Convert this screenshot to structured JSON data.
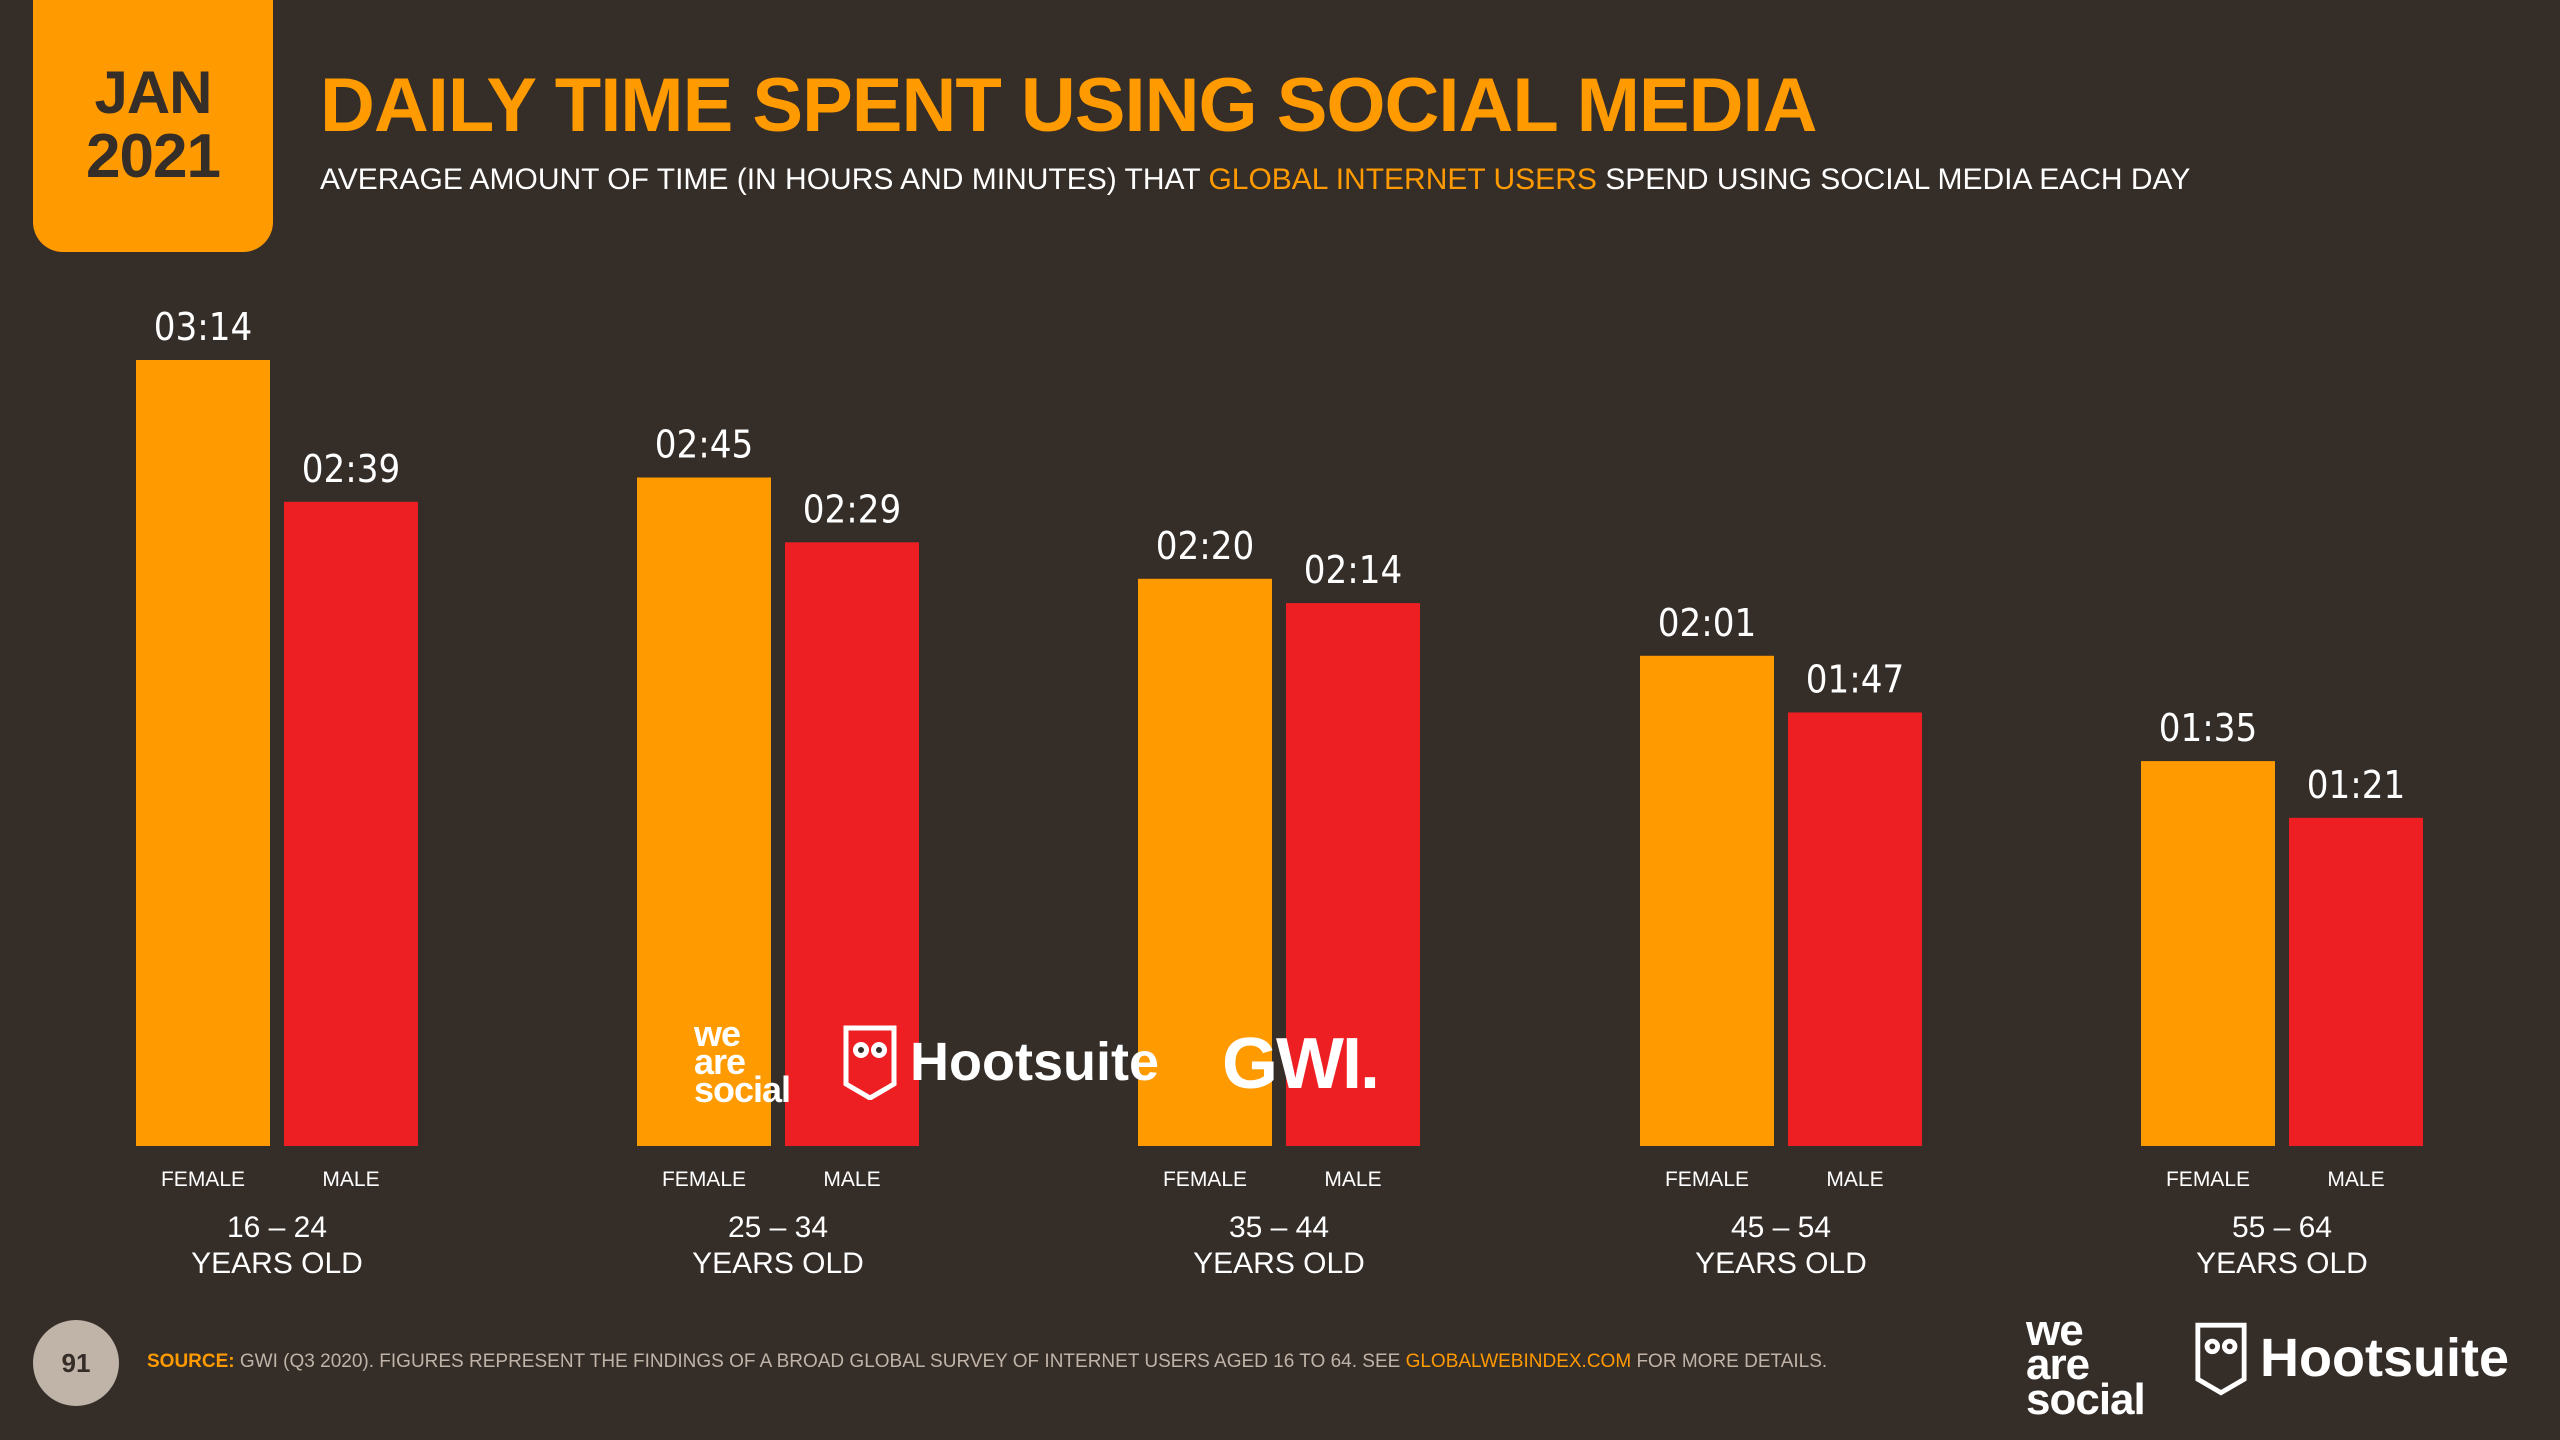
{
  "header": {
    "badge_month": "JAN",
    "badge_year": "2021",
    "title": "DAILY TIME SPENT USING SOCIAL MEDIA",
    "subtitle_pre": "AVERAGE AMOUNT OF TIME (IN HOURS AND MINUTES) THAT ",
    "subtitle_highlight": "GLOBAL INTERNET USERS",
    "subtitle_post": " SPEND USING SOCIAL MEDIA EACH DAY"
  },
  "chart_data": {
    "type": "bar",
    "categories": [
      "16 – 24",
      "25 – 34",
      "35 – 44",
      "45 – 54",
      "55 – 64"
    ],
    "category_suffix": "YEARS OLD",
    "series": [
      {
        "name": "FEMALE",
        "values": [
          194,
          165,
          140,
          121,
          95
        ],
        "labels": [
          "03:14",
          "02:45",
          "02:20",
          "02:01",
          "01:35"
        ],
        "color": "#ff9a00"
      },
      {
        "name": "MALE",
        "values": [
          159,
          149,
          134,
          107,
          81
        ],
        "labels": [
          "02:39",
          "02:29",
          "02:14",
          "01:47",
          "01:21"
        ],
        "color": "#ee1f23"
      }
    ],
    "ylim": [
      0,
      194
    ],
    "grid": false,
    "legend": "none"
  },
  "watermark": {
    "was_lines": [
      "we",
      "are",
      "social"
    ],
    "hootsuite": "Hootsuite",
    "gwi": "GWI."
  },
  "footer": {
    "page_number": "91",
    "source_label": "SOURCE:",
    "source_pre": " GWI (Q3 2020). FIGURES REPRESENT THE FINDINGS OF A BROAD GLOBAL SURVEY OF INTERNET USERS AGED 16 TO 64. SEE ",
    "source_link": "GLOBALWEBINDEX.COM",
    "source_post": " FOR MORE DETAILS.",
    "was_lines": [
      "we",
      "are",
      "social"
    ],
    "hootsuite": "Hootsuite"
  },
  "colors": {
    "background": "#352d28",
    "accent": "#ff9a00",
    "male": "#ee1f23",
    "muted": "#c0b4a8"
  }
}
